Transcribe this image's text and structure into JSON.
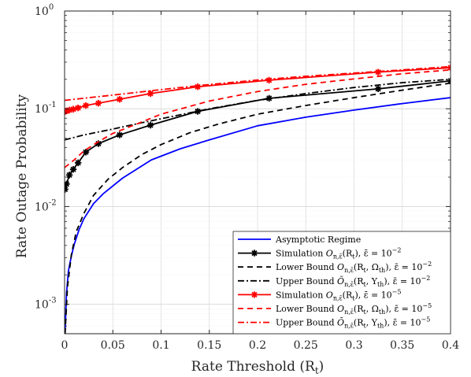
{
  "chart_data": {
    "type": "line",
    "xlabel": "Rate Threshold (R",
    "xlabel_sub": "t",
    "xlabel_close": ")",
    "ylabel": "Rate Outage Probability",
    "xlim": [
      0,
      0.4
    ],
    "ylim": [
      0.0005,
      1
    ],
    "yscale": "log",
    "grid": true,
    "legend_position": "bottom-right",
    "x_ticks": [
      {
        "value": 0,
        "label": "0"
      },
      {
        "value": 0.05,
        "label": "0.05"
      },
      {
        "value": 0.1,
        "label": "0.1"
      },
      {
        "value": 0.15,
        "label": "0.15"
      },
      {
        "value": 0.2,
        "label": "0.2"
      },
      {
        "value": 0.25,
        "label": "0.25"
      },
      {
        "value": 0.3,
        "label": "0.3"
      },
      {
        "value": 0.35,
        "label": "0.35"
      },
      {
        "value": 0.4,
        "label": "0.4"
      }
    ],
    "y_ticks": [
      {
        "value": 0.001,
        "base": "10",
        "exp": "-3"
      },
      {
        "value": 0.01,
        "base": "10",
        "exp": "-2"
      },
      {
        "value": 0.1,
        "base": "10",
        "exp": "-1"
      },
      {
        "value": 1,
        "base": "10",
        "exp": "0"
      }
    ],
    "series": [
      {
        "name": "Asymptotic Regime",
        "color": "#0000ff",
        "dash": "solid",
        "marker": "none",
        "x": [
          0.0005,
          0.002,
          0.004,
          0.007,
          0.01,
          0.015,
          0.02,
          0.03,
          0.04,
          0.06,
          0.09,
          0.12,
          0.15,
          0.2,
          0.25,
          0.3,
          0.35,
          0.4
        ],
        "y": [
          0.0005,
          0.0013,
          0.0022,
          0.0031,
          0.0041,
          0.0058,
          0.0075,
          0.0107,
          0.0135,
          0.0195,
          0.03,
          0.039,
          0.048,
          0.067,
          0.082,
          0.097,
          0.113,
          0.13
        ]
      },
      {
        "name": "Simulation O_{n,ε}(R_t), ε̄ = 10^{-2}",
        "color": "#000000",
        "dash": "solid",
        "marker": "star",
        "x": [
          0.0005,
          0.002,
          0.005,
          0.009,
          0.014,
          0.022,
          0.035,
          0.057,
          0.089,
          0.138,
          0.212,
          0.325,
          0.4
        ],
        "y": [
          0.015,
          0.017,
          0.021,
          0.024,
          0.028,
          0.036,
          0.044,
          0.054,
          0.068,
          0.094,
          0.128,
          0.16,
          0.193
        ]
      },
      {
        "name": "Lower Bound O_{n,ε}(R_t, Ω_th), ε̄ = 10^{-2}",
        "color": "#000000",
        "dash": "dashed",
        "marker": "none",
        "x": [
          0.0005,
          0.003,
          0.007,
          0.012,
          0.02,
          0.03,
          0.045,
          0.06,
          0.08,
          0.1,
          0.13,
          0.16,
          0.2,
          0.25,
          0.3,
          0.35,
          0.4
        ],
        "y": [
          0.0005,
          0.0015,
          0.0032,
          0.0055,
          0.0085,
          0.013,
          0.019,
          0.025,
          0.034,
          0.043,
          0.057,
          0.07,
          0.088,
          0.108,
          0.13,
          0.155,
          0.183
        ]
      },
      {
        "name": "Upper Bound Ō_{n,ε}(R_t, Υ_th), ε̄ = 10^{-2}",
        "color": "#000000",
        "dash": "dashdot",
        "marker": "none",
        "x": [
          0,
          0.02,
          0.05,
          0.08,
          0.1,
          0.15,
          0.2,
          0.25,
          0.3,
          0.35,
          0.4
        ],
        "y": [
          0.048,
          0.054,
          0.062,
          0.072,
          0.079,
          0.1,
          0.122,
          0.143,
          0.165,
          0.185,
          0.2
        ]
      },
      {
        "name": "Simulation O_{n,ε}(R_t), ε̄ = 10^{-5}",
        "color": "#ff0000",
        "dash": "solid",
        "marker": "star",
        "x": [
          0.0005,
          0.002,
          0.005,
          0.009,
          0.014,
          0.022,
          0.035,
          0.057,
          0.089,
          0.138,
          0.212,
          0.325,
          0.4
        ],
        "y": [
          0.094,
          0.095,
          0.097,
          0.099,
          0.102,
          0.108,
          0.114,
          0.125,
          0.143,
          0.168,
          0.196,
          0.237,
          0.263
        ]
      },
      {
        "name": "Lower Bound O_{n,ε}(R_t, Ω_th), ε̄ = 10^{-5}",
        "color": "#ff0000",
        "dash": "dashed",
        "marker": "none",
        "x": [
          0,
          0.01,
          0.02,
          0.035,
          0.05,
          0.075,
          0.1,
          0.15,
          0.2,
          0.25,
          0.3,
          0.35,
          0.4
        ],
        "y": [
          0.025,
          0.03,
          0.037,
          0.046,
          0.056,
          0.07,
          0.088,
          0.12,
          0.15,
          0.178,
          0.202,
          0.228,
          0.25
        ]
      },
      {
        "name": "Upper Bound Ō_{n,ε}(R_t, Υ_th), ε̄ = 10^{-5}",
        "color": "#ff0000",
        "dash": "dashdot",
        "marker": "none",
        "x": [
          0,
          0.05,
          0.1,
          0.15,
          0.2,
          0.25,
          0.3,
          0.35,
          0.4
        ],
        "y": [
          0.122,
          0.138,
          0.157,
          0.177,
          0.197,
          0.215,
          0.232,
          0.25,
          0.27
        ]
      }
    ]
  },
  "legend": {
    "items": [
      {
        "prefix": "Asymptotic Regime",
        "sym": "",
        "sub": "",
        "args": "",
        "eps_exp": ""
      },
      {
        "prefix": "Simulation ",
        "sym": "O",
        "sub": "n,ε̄",
        "args": "(R",
        "eps_exp": "−2"
      },
      {
        "prefix": "Lower Bound ",
        "sym": "O",
        "sub": "n,ε̄",
        "args": "(R",
        "eps_exp": "−2"
      },
      {
        "prefix": "Upper Bound ",
        "sym": "Ō",
        "sub": "n,ε̄",
        "args": "(R",
        "eps_exp": "−2"
      },
      {
        "prefix": "Simulation ",
        "sym": "O",
        "sub": "n,ε̄",
        "args": "(R",
        "eps_exp": "−5"
      },
      {
        "prefix": "Lower Bound ",
        "sym": "O",
        "sub": "n,ε̄",
        "args": "(R",
        "eps_exp": "−5"
      },
      {
        "prefix": "Upper Bound ",
        "sym": "Ō",
        "sub": "n,ε̄",
        "args": "(R",
        "eps_exp": "−5"
      }
    ],
    "arg_tails": [
      "",
      "t",
      "t",
      "t",
      "t",
      "t",
      "t"
    ],
    "extra": [
      "",
      "",
      ", Ω",
      ", Υ",
      "",
      ", Ω",
      ", Υ"
    ],
    "extra_sub": [
      "",
      "",
      "th",
      "th",
      "",
      "th",
      "th"
    ],
    "eps_text": "), ε̄ = 10"
  }
}
